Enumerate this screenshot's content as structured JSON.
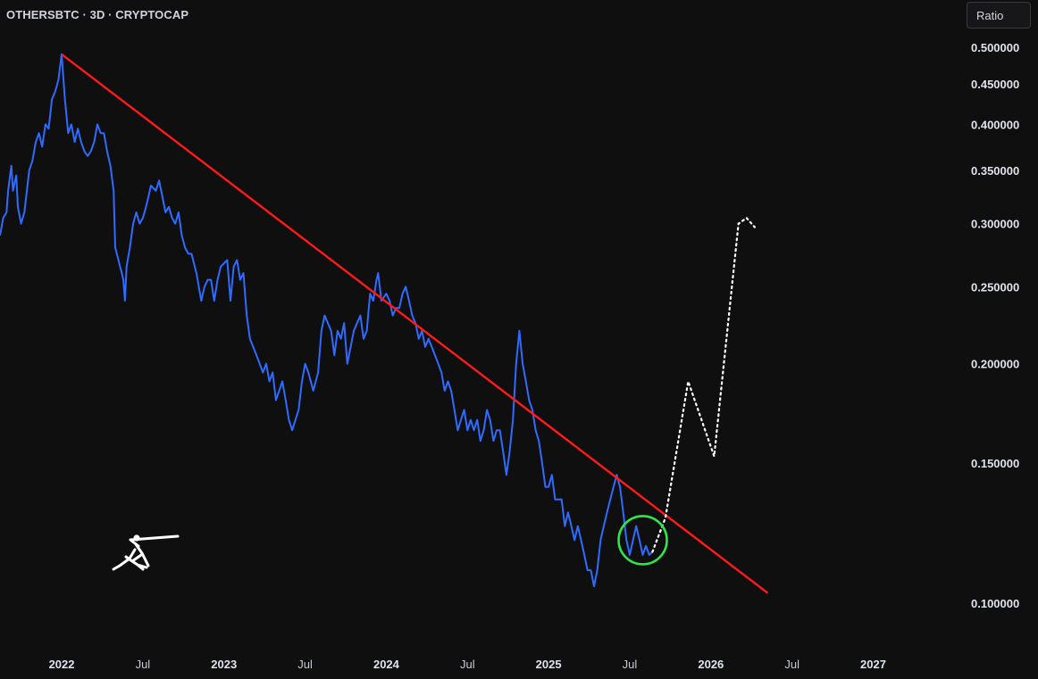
{
  "header": {
    "symbol_line": "OTHERSBTC · 3D · CRYPTOCAP"
  },
  "controls": {
    "scale_mode": "Ratio"
  },
  "colors": {
    "background": "#0f0f10",
    "price": "#2f6bff",
    "trendline": "#ff1a1a",
    "circle": "#2ee84a",
    "projection": "#ffffff"
  },
  "chart_data": {
    "type": "line",
    "y_axis": {
      "ticks": [
        "0.500000",
        "0.450000",
        "0.400000",
        "0.350000",
        "0.300000",
        "0.250000",
        "0.200000",
        "0.150000",
        "0.100000"
      ],
      "range": [
        0.095,
        0.51
      ]
    },
    "x_axis": {
      "ticks": [
        {
          "label": "2022",
          "t": 2022.0,
          "major": true
        },
        {
          "label": "Jul",
          "t": 2022.5,
          "major": false
        },
        {
          "label": "2023",
          "t": 2023.0,
          "major": true
        },
        {
          "label": "Jul",
          "t": 2023.5,
          "major": false
        },
        {
          "label": "2024",
          "t": 2024.0,
          "major": true
        },
        {
          "label": "Jul",
          "t": 2024.5,
          "major": false
        },
        {
          "label": "2025",
          "t": 2025.0,
          "major": true
        },
        {
          "label": "Jul",
          "t": 2025.5,
          "major": false
        },
        {
          "label": "2026",
          "t": 2026.0,
          "major": true
        },
        {
          "label": "Jul",
          "t": 2026.5,
          "major": false
        },
        {
          "label": "2027",
          "t": 2027.0,
          "major": true
        }
      ],
      "range": [
        2021.62,
        2027.52
      ]
    },
    "series": [
      {
        "kind": "price",
        "points": [
          [
            2021.62,
            0.29
          ],
          [
            2021.64,
            0.305
          ],
          [
            2021.66,
            0.31
          ],
          [
            2021.67,
            0.33
          ],
          [
            2021.69,
            0.355
          ],
          [
            2021.7,
            0.33
          ],
          [
            2021.72,
            0.345
          ],
          [
            2021.73,
            0.315
          ],
          [
            2021.75,
            0.3
          ],
          [
            2021.77,
            0.31
          ],
          [
            2021.8,
            0.35
          ],
          [
            2021.82,
            0.36
          ],
          [
            2021.84,
            0.38
          ],
          [
            2021.86,
            0.39
          ],
          [
            2021.88,
            0.375
          ],
          [
            2021.9,
            0.4
          ],
          [
            2021.92,
            0.395
          ],
          [
            2021.94,
            0.43
          ],
          [
            2021.96,
            0.44
          ],
          [
            2021.98,
            0.455
          ],
          [
            2022.0,
            0.49
          ],
          [
            2022.02,
            0.43
          ],
          [
            2022.04,
            0.39
          ],
          [
            2022.06,
            0.4
          ],
          [
            2022.08,
            0.38
          ],
          [
            2022.1,
            0.395
          ],
          [
            2022.12,
            0.38
          ],
          [
            2022.14,
            0.37
          ],
          [
            2022.16,
            0.365
          ],
          [
            2022.18,
            0.37
          ],
          [
            2022.2,
            0.38
          ],
          [
            2022.22,
            0.4
          ],
          [
            2022.24,
            0.39
          ],
          [
            2022.26,
            0.39
          ],
          [
            2022.28,
            0.37
          ],
          [
            2022.3,
            0.355
          ],
          [
            2022.32,
            0.33
          ],
          [
            2022.33,
            0.28
          ],
          [
            2022.35,
            0.27
          ],
          [
            2022.37,
            0.26
          ],
          [
            2022.38,
            0.255
          ],
          [
            2022.39,
            0.24
          ],
          [
            2022.4,
            0.265
          ],
          [
            2022.42,
            0.28
          ],
          [
            2022.44,
            0.3
          ],
          [
            2022.46,
            0.31
          ],
          [
            2022.48,
            0.3
          ],
          [
            2022.5,
            0.305
          ],
          [
            2022.52,
            0.315
          ],
          [
            2022.55,
            0.335
          ],
          [
            2022.58,
            0.33
          ],
          [
            2022.6,
            0.34
          ],
          [
            2022.62,
            0.325
          ],
          [
            2022.64,
            0.31
          ],
          [
            2022.66,
            0.315
          ],
          [
            2022.68,
            0.305
          ],
          [
            2022.7,
            0.3
          ],
          [
            2022.72,
            0.31
          ],
          [
            2022.74,
            0.29
          ],
          [
            2022.76,
            0.28
          ],
          [
            2022.78,
            0.275
          ],
          [
            2022.8,
            0.275
          ],
          [
            2022.83,
            0.26
          ],
          [
            2022.86,
            0.24
          ],
          [
            2022.88,
            0.25
          ],
          [
            2022.9,
            0.255
          ],
          [
            2022.92,
            0.255
          ],
          [
            2022.94,
            0.24
          ],
          [
            2022.96,
            0.255
          ],
          [
            2022.98,
            0.265
          ],
          [
            2023.02,
            0.27
          ],
          [
            2023.04,
            0.24
          ],
          [
            2023.06,
            0.265
          ],
          [
            2023.08,
            0.27
          ],
          [
            2023.1,
            0.255
          ],
          [
            2023.12,
            0.26
          ],
          [
            2023.14,
            0.23
          ],
          [
            2023.16,
            0.215
          ],
          [
            2023.18,
            0.21
          ],
          [
            2023.2,
            0.205
          ],
          [
            2023.22,
            0.2
          ],
          [
            2023.24,
            0.195
          ],
          [
            2023.26,
            0.2
          ],
          [
            2023.28,
            0.19
          ],
          [
            2023.3,
            0.195
          ],
          [
            2023.32,
            0.18
          ],
          [
            2023.34,
            0.185
          ],
          [
            2023.36,
            0.19
          ],
          [
            2023.38,
            0.18
          ],
          [
            2023.4,
            0.17
          ],
          [
            2023.42,
            0.165
          ],
          [
            2023.44,
            0.17
          ],
          [
            2023.46,
            0.175
          ],
          [
            2023.48,
            0.19
          ],
          [
            2023.5,
            0.2
          ],
          [
            2023.52,
            0.195
          ],
          [
            2023.55,
            0.185
          ],
          [
            2023.58,
            0.195
          ],
          [
            2023.6,
            0.22
          ],
          [
            2023.62,
            0.23
          ],
          [
            2023.64,
            0.225
          ],
          [
            2023.66,
            0.22
          ],
          [
            2023.68,
            0.205
          ],
          [
            2023.7,
            0.22
          ],
          [
            2023.72,
            0.215
          ],
          [
            2023.74,
            0.225
          ],
          [
            2023.76,
            0.2
          ],
          [
            2023.78,
            0.21
          ],
          [
            2023.8,
            0.22
          ],
          [
            2023.82,
            0.225
          ],
          [
            2023.84,
            0.23
          ],
          [
            2023.86,
            0.215
          ],
          [
            2023.88,
            0.22
          ],
          [
            2023.9,
            0.245
          ],
          [
            2023.92,
            0.24
          ],
          [
            2023.94,
            0.255
          ],
          [
            2023.95,
            0.26
          ],
          [
            2023.97,
            0.24
          ],
          [
            2024.0,
            0.245
          ],
          [
            2024.02,
            0.24
          ],
          [
            2024.04,
            0.23
          ],
          [
            2024.06,
            0.235
          ],
          [
            2024.08,
            0.235
          ],
          [
            2024.1,
            0.245
          ],
          [
            2024.12,
            0.25
          ],
          [
            2024.14,
            0.24
          ],
          [
            2024.16,
            0.23
          ],
          [
            2024.18,
            0.225
          ],
          [
            2024.2,
            0.215
          ],
          [
            2024.22,
            0.22
          ],
          [
            2024.24,
            0.21
          ],
          [
            2024.26,
            0.215
          ],
          [
            2024.28,
            0.21
          ],
          [
            2024.3,
            0.205
          ],
          [
            2024.32,
            0.2
          ],
          [
            2024.34,
            0.195
          ],
          [
            2024.36,
            0.185
          ],
          [
            2024.38,
            0.19
          ],
          [
            2024.4,
            0.185
          ],
          [
            2024.42,
            0.175
          ],
          [
            2024.44,
            0.165
          ],
          [
            2024.46,
            0.17
          ],
          [
            2024.48,
            0.175
          ],
          [
            2024.5,
            0.165
          ],
          [
            2024.52,
            0.17
          ],
          [
            2024.54,
            0.165
          ],
          [
            2024.56,
            0.17
          ],
          [
            2024.58,
            0.16
          ],
          [
            2024.6,
            0.165
          ],
          [
            2024.62,
            0.175
          ],
          [
            2024.64,
            0.17
          ],
          [
            2024.66,
            0.16
          ],
          [
            2024.68,
            0.165
          ],
          [
            2024.7,
            0.165
          ],
          [
            2024.72,
            0.155
          ],
          [
            2024.74,
            0.145
          ],
          [
            2024.76,
            0.155
          ],
          [
            2024.78,
            0.17
          ],
          [
            2024.8,
            0.2
          ],
          [
            2024.82,
            0.22
          ],
          [
            2024.84,
            0.2
          ],
          [
            2024.86,
            0.19
          ],
          [
            2024.88,
            0.18
          ],
          [
            2024.9,
            0.175
          ],
          [
            2024.92,
            0.165
          ],
          [
            2024.94,
            0.16
          ],
          [
            2024.96,
            0.15
          ],
          [
            2024.98,
            0.14
          ],
          [
            2025.0,
            0.14
          ],
          [
            2025.02,
            0.145
          ],
          [
            2025.04,
            0.135
          ],
          [
            2025.06,
            0.135
          ],
          [
            2025.08,
            0.135
          ],
          [
            2025.1,
            0.125
          ],
          [
            2025.12,
            0.13
          ],
          [
            2025.14,
            0.125
          ],
          [
            2025.16,
            0.12
          ],
          [
            2025.18,
            0.125
          ],
          [
            2025.2,
            0.12
          ],
          [
            2025.22,
            0.115
          ],
          [
            2025.24,
            0.11
          ],
          [
            2025.26,
            0.11
          ],
          [
            2025.28,
            0.105
          ],
          [
            2025.3,
            0.11
          ],
          [
            2025.32,
            0.12
          ],
          [
            2025.34,
            0.125
          ],
          [
            2025.36,
            0.13
          ],
          [
            2025.38,
            0.135
          ],
          [
            2025.4,
            0.14
          ],
          [
            2025.42,
            0.145
          ],
          [
            2025.44,
            0.14
          ],
          [
            2025.46,
            0.13
          ],
          [
            2025.48,
            0.12
          ],
          [
            2025.5,
            0.115
          ],
          [
            2025.52,
            0.12
          ],
          [
            2025.54,
            0.125
          ],
          [
            2025.56,
            0.12
          ],
          [
            2025.58,
            0.115
          ],
          [
            2025.6,
            0.118
          ],
          [
            2025.62,
            0.115
          ],
          [
            2025.64,
            0.116
          ]
        ]
      },
      {
        "kind": "trendline",
        "points": [
          [
            2022.0,
            0.49
          ],
          [
            2026.35,
            0.103
          ]
        ]
      },
      {
        "kind": "projection",
        "points": [
          [
            2025.64,
            0.116
          ],
          [
            2025.72,
            0.128
          ],
          [
            2025.86,
            0.19
          ],
          [
            2026.02,
            0.153
          ],
          [
            2026.17,
            0.3
          ],
          [
            2026.22,
            0.305
          ],
          [
            2026.27,
            0.297
          ]
        ]
      }
    ],
    "annotations": {
      "highlight": {
        "t": 2025.58,
        "v": 0.12
      }
    },
    "legend": "none",
    "grid": false
  }
}
